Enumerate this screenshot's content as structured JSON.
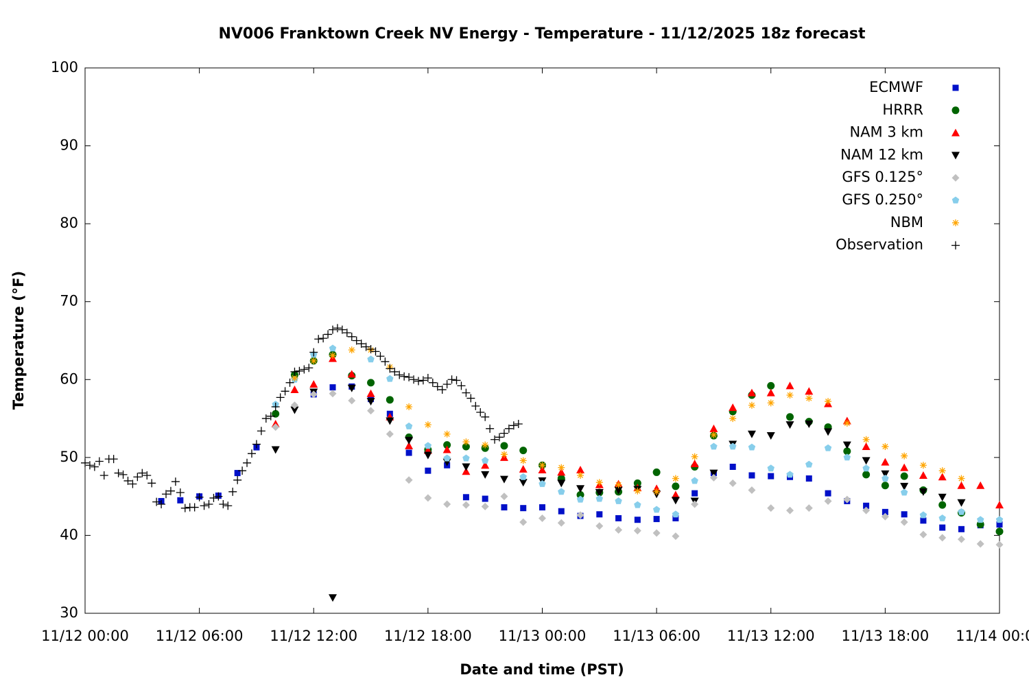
{
  "chart_data": {
    "type": "scatter",
    "title": "NV006 Franktown Creek NV Energy - Temperature - 11/12/2025 18z forecast",
    "x_label": "Date and time (PST)",
    "y_label": "Temperature (°F)",
    "xlim": [
      "11/12 00:00",
      "11/14 00:00"
    ],
    "xticks": [
      "11/12 00:00",
      "11/12 06:00",
      "11/12 12:00",
      "11/12 18:00",
      "11/13 00:00",
      "11/13 06:00",
      "11/13 12:00",
      "11/13 18:00",
      "11/14 00:00"
    ],
    "ylim": [
      30,
      100
    ],
    "yticks": [
      30,
      40,
      50,
      60,
      70,
      80,
      90,
      100
    ],
    "grid": false,
    "legend": "top-right",
    "x": [
      "11/12 04:00",
      "11/12 05:00",
      "11/12 06:00",
      "11/12 07:00",
      "11/12 08:00",
      "11/12 09:00",
      "11/12 10:00",
      "11/12 11:00",
      "11/12 12:00",
      "11/12 13:00",
      "11/12 14:00",
      "11/12 15:00",
      "11/12 16:00",
      "11/12 17:00",
      "11/12 18:00",
      "11/12 19:00",
      "11/12 20:00",
      "11/12 21:00",
      "11/12 22:00",
      "11/12 23:00",
      "11/13 00:00",
      "11/13 01:00",
      "11/13 02:00",
      "11/13 03:00",
      "11/13 04:00",
      "11/13 05:00",
      "11/13 06:00",
      "11/13 07:00",
      "11/13 08:00",
      "11/13 09:00",
      "11/13 10:00",
      "11/13 11:00",
      "11/13 12:00",
      "11/13 13:00",
      "11/13 14:00",
      "11/13 15:00",
      "11/13 16:00",
      "11/13 17:00",
      "11/13 18:00",
      "11/13 19:00",
      "11/13 20:00",
      "11/13 21:00",
      "11/13 22:00",
      "11/13 23:00",
      "11/14 00:00"
    ],
    "series": [
      {
        "name": "ECMWF",
        "color": "#0010c8",
        "marker": "square",
        "values": [
          44.4,
          44.5,
          45.0,
          45.1,
          48.0,
          51.3,
          null,
          null,
          58.1,
          59.0,
          59.1,
          57.5,
          55.6,
          50.6,
          48.3,
          49.0,
          44.9,
          44.7,
          43.6,
          43.5,
          43.6,
          43.1,
          42.5,
          42.7,
          42.2,
          42.0,
          42.1,
          42.2,
          45.4,
          48.0,
          48.8,
          47.7,
          47.6,
          47.5,
          47.3,
          45.4,
          44.4,
          43.8,
          43.0,
          42.7,
          41.9,
          41.0,
          40.8,
          41.3,
          41.4
        ]
      },
      {
        "name": "HRRR",
        "color": "#006400",
        "marker": "circle",
        "values": [
          null,
          null,
          null,
          null,
          null,
          null,
          55.6,
          60.6,
          62.4,
          63.2,
          60.5,
          59.6,
          57.4,
          52.6,
          51.0,
          51.6,
          51.4,
          51.2,
          51.5,
          50.9,
          49.0,
          47.3,
          45.2,
          45.5,
          45.6,
          46.7,
          48.1,
          46.3,
          48.8,
          52.8,
          55.9,
          58.0,
          59.2,
          55.2,
          54.6,
          53.9,
          50.8,
          47.8,
          46.4,
          47.6,
          45.8,
          43.9,
          42.9,
          41.4,
          40.5
        ]
      },
      {
        "name": "NAM 3 km",
        "color": "#ff0000",
        "marker": "triangle-up",
        "values": [
          null,
          null,
          null,
          null,
          null,
          null,
          54.3,
          58.7,
          59.4,
          62.7,
          60.7,
          58.2,
          55.2,
          51.5,
          50.9,
          51.0,
          48.2,
          49.0,
          50.0,
          48.5,
          48.4,
          48.1,
          48.4,
          46.5,
          46.6,
          46.1,
          46.0,
          45.2,
          49.2,
          53.7,
          56.4,
          58.3,
          58.3,
          59.2,
          58.5,
          56.9,
          54.7,
          51.4,
          49.4,
          48.7,
          47.7,
          47.5,
          46.4,
          46.4,
          43.9
        ]
      },
      {
        "name": "NAM 12 km",
        "color": "#000000",
        "marker": "triangle-down",
        "values": [
          null,
          null,
          null,
          null,
          null,
          null,
          51.0,
          56.1,
          58.4,
          32.0,
          58.9,
          57.2,
          54.7,
          52.2,
          50.3,
          49.4,
          48.8,
          47.8,
          47.2,
          46.8,
          47.0,
          46.7,
          46.0,
          45.5,
          45.8,
          45.9,
          45.3,
          44.5,
          44.4,
          48.0,
          51.7,
          53.0,
          52.8,
          54.2,
          54.3,
          53.3,
          51.6,
          49.6,
          47.9,
          46.3,
          45.6,
          44.9,
          44.2,
          null,
          null
        ]
      },
      {
        "name": "GFS 0.125°",
        "color": "#c0c0c0",
        "marker": "diamond",
        "values": [
          null,
          null,
          null,
          null,
          null,
          null,
          53.9,
          56.7,
          58.1,
          58.2,
          57.3,
          56.0,
          53.0,
          47.1,
          44.8,
          44.0,
          43.9,
          43.7,
          45.0,
          41.7,
          42.2,
          41.6,
          42.6,
          41.2,
          40.7,
          40.6,
          40.3,
          39.9,
          44.0,
          47.4,
          46.7,
          45.8,
          43.5,
          43.2,
          43.5,
          44.4,
          44.6,
          43.2,
          42.4,
          41.7,
          40.1,
          39.7,
          39.5,
          38.9,
          38.8
        ]
      },
      {
        "name": "GFS 0.250°",
        "color": "#87ceeb",
        "marker": "pentagon",
        "values": [
          null,
          null,
          null,
          null,
          null,
          null,
          56.8,
          60.0,
          63.2,
          64.0,
          null,
          62.6,
          60.1,
          54.0,
          51.5,
          49.9,
          49.9,
          49.6,
          null,
          47.5,
          46.6,
          45.6,
          44.6,
          44.7,
          44.4,
          43.9,
          43.3,
          42.7,
          47.0,
          51.4,
          51.4,
          51.3,
          48.6,
          47.8,
          49.1,
          51.2,
          50.0,
          48.6,
          47.3,
          45.5,
          42.6,
          42.2,
          43.0,
          42.0,
          42.0
        ]
      },
      {
        "name": "NBM",
        "color": "#ffa500",
        "marker": "asterisk",
        "values": [
          null,
          null,
          null,
          null,
          null,
          null,
          null,
          60.2,
          62.4,
          63.1,
          63.8,
          63.8,
          61.6,
          56.5,
          54.2,
          53.0,
          52.0,
          51.6,
          50.4,
          49.6,
          49.0,
          48.7,
          47.7,
          46.8,
          46.5,
          45.7,
          45.6,
          47.3,
          50.1,
          52.9,
          55.0,
          56.7,
          57.0,
          58.0,
          57.6,
          57.2,
          54.4,
          52.3,
          51.4,
          50.2,
          49.0,
          48.3,
          47.3,
          null,
          null
        ]
      },
      {
        "name": "Observation",
        "color": "#000000",
        "marker": "plus",
        "x": [
          "11/12 00:00",
          "11/12 00:15",
          "11/12 00:30",
          "11/12 00:45",
          "11/12 01:00",
          "11/12 01:15",
          "11/12 01:30",
          "11/12 01:45",
          "11/12 02:00",
          "11/12 02:15",
          "11/12 02:30",
          "11/12 02:45",
          "11/12 03:00",
          "11/12 03:15",
          "11/12 03:30",
          "11/12 03:45",
          "11/12 04:00",
          "11/12 04:15",
          "11/12 04:30",
          "11/12 04:45",
          "11/12 05:00",
          "11/12 05:15",
          "11/12 05:30",
          "11/12 05:45",
          "11/12 06:00",
          "11/12 06:15",
          "11/12 06:30",
          "11/12 06:45",
          "11/12 07:00",
          "11/12 07:15",
          "11/12 07:30",
          "11/12 07:45",
          "11/12 08:00",
          "11/12 08:15",
          "11/12 08:30",
          "11/12 08:45",
          "11/12 09:00",
          "11/12 09:15",
          "11/12 09:30",
          "11/12 09:45",
          "11/12 10:00",
          "11/12 10:15",
          "11/12 10:30",
          "11/12 10:45",
          "11/12 11:00",
          "11/12 11:15",
          "11/12 11:30",
          "11/12 11:45",
          "11/12 12:00",
          "11/12 12:15",
          "11/12 12:30",
          "11/12 12:45",
          "11/12 13:00",
          "11/12 13:15",
          "11/12 13:30",
          "11/12 13:45",
          "11/12 14:00",
          "11/12 14:15",
          "11/12 14:30",
          "11/12 14:45",
          "11/12 15:00",
          "11/12 15:15",
          "11/12 15:30",
          "11/12 15:45",
          "11/12 16:00",
          "11/12 16:15",
          "11/12 16:30",
          "11/12 16:45",
          "11/12 17:00",
          "11/12 17:15",
          "11/12 17:30",
          "11/12 17:45",
          "11/12 18:00",
          "11/12 18:15",
          "11/12 18:30",
          "11/12 18:45",
          "11/12 19:00",
          "11/12 19:15",
          "11/12 19:30",
          "11/12 19:45",
          "11/12 20:00",
          "11/12 20:15",
          "11/12 20:30",
          "11/12 20:45",
          "11/12 21:00",
          "11/12 21:15",
          "11/12 21:30",
          "11/12 21:45",
          "11/12 22:00",
          "11/12 22:15",
          "11/12 22:30",
          "11/12 22:45"
        ],
        "values": [
          49.3,
          49.0,
          48.8,
          49.5,
          47.7,
          49.8,
          49.8,
          48.0,
          47.8,
          47.0,
          46.6,
          47.5,
          48.0,
          47.7,
          46.7,
          44.3,
          44.0,
          45.3,
          45.7,
          46.9,
          45.5,
          43.5,
          43.6,
          43.6,
          44.9,
          43.8,
          44.0,
          44.8,
          45.0,
          44.0,
          43.8,
          45.6,
          47.1,
          48.3,
          49.3,
          50.5,
          51.7,
          53.4,
          55.0,
          55.3,
          56.5,
          57.7,
          58.5,
          59.6,
          61.0,
          61.1,
          61.3,
          61.5,
          63.5,
          65.2,
          65.3,
          65.8,
          66.4,
          66.6,
          66.4,
          66.0,
          65.5,
          65.0,
          64.6,
          64.2,
          63.9,
          63.6,
          63.0,
          62.3,
          61.4,
          61.0,
          60.6,
          60.4,
          60.3,
          60.0,
          59.8,
          59.9,
          60.2,
          59.6,
          59.1,
          58.7,
          59.4,
          60.0,
          59.9,
          59.2,
          58.3,
          57.6,
          56.6,
          55.8,
          55.2,
          53.7,
          52.3,
          52.6,
          53.1,
          53.7,
          54.1,
          54.3
        ]
      }
    ]
  }
}
